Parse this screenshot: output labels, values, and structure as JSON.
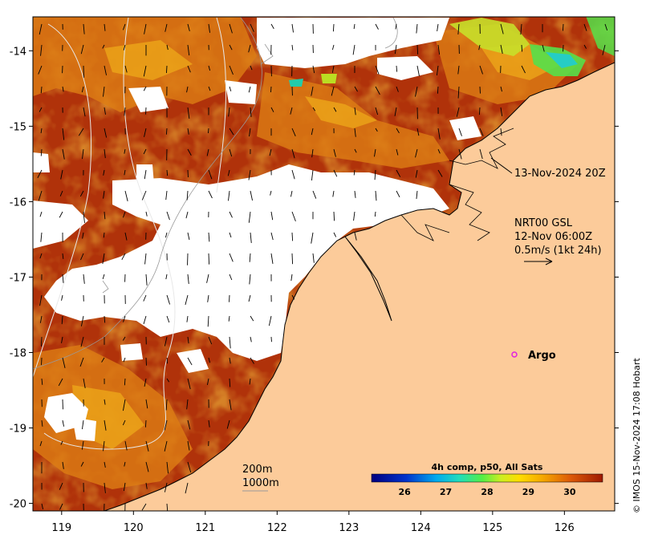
{
  "map": {
    "x_ticks": [
      "119",
      "120",
      "121",
      "122",
      "123",
      "124",
      "125",
      "126"
    ],
    "y_ticks": [
      "-14",
      "-15",
      "-16",
      "-17",
      "-18",
      "-19",
      "-20"
    ],
    "lon_range": [
      118.6,
      126.7
    ],
    "lat_range": [
      -20.1,
      -13.55
    ]
  },
  "annotations": {
    "timestamp": "13-Nov-2024 20Z",
    "current_source": "NRT00 GSL",
    "current_time": "12-Nov 06:00Z",
    "current_scale": "0.5m/s (1kt 24h)",
    "argo_label": "Argo",
    "contour_200": "200m",
    "contour_1000": "1000m"
  },
  "colorbar": {
    "title": "4h comp, p50, All Sats",
    "ticks": [
      "26",
      "27",
      "28",
      "29",
      "30"
    ],
    "range": [
      25.2,
      30.8
    ]
  },
  "credit": "© IMOS 15-Nov-2024 17:08 Hobart",
  "colors": {
    "land": "#fccb9a",
    "sst_hot": "#a51e02",
    "sst_warm": "#d2620a",
    "sst_mid": "#e89a12",
    "cloud": "#ffffff",
    "argo": "#e020e0"
  }
}
